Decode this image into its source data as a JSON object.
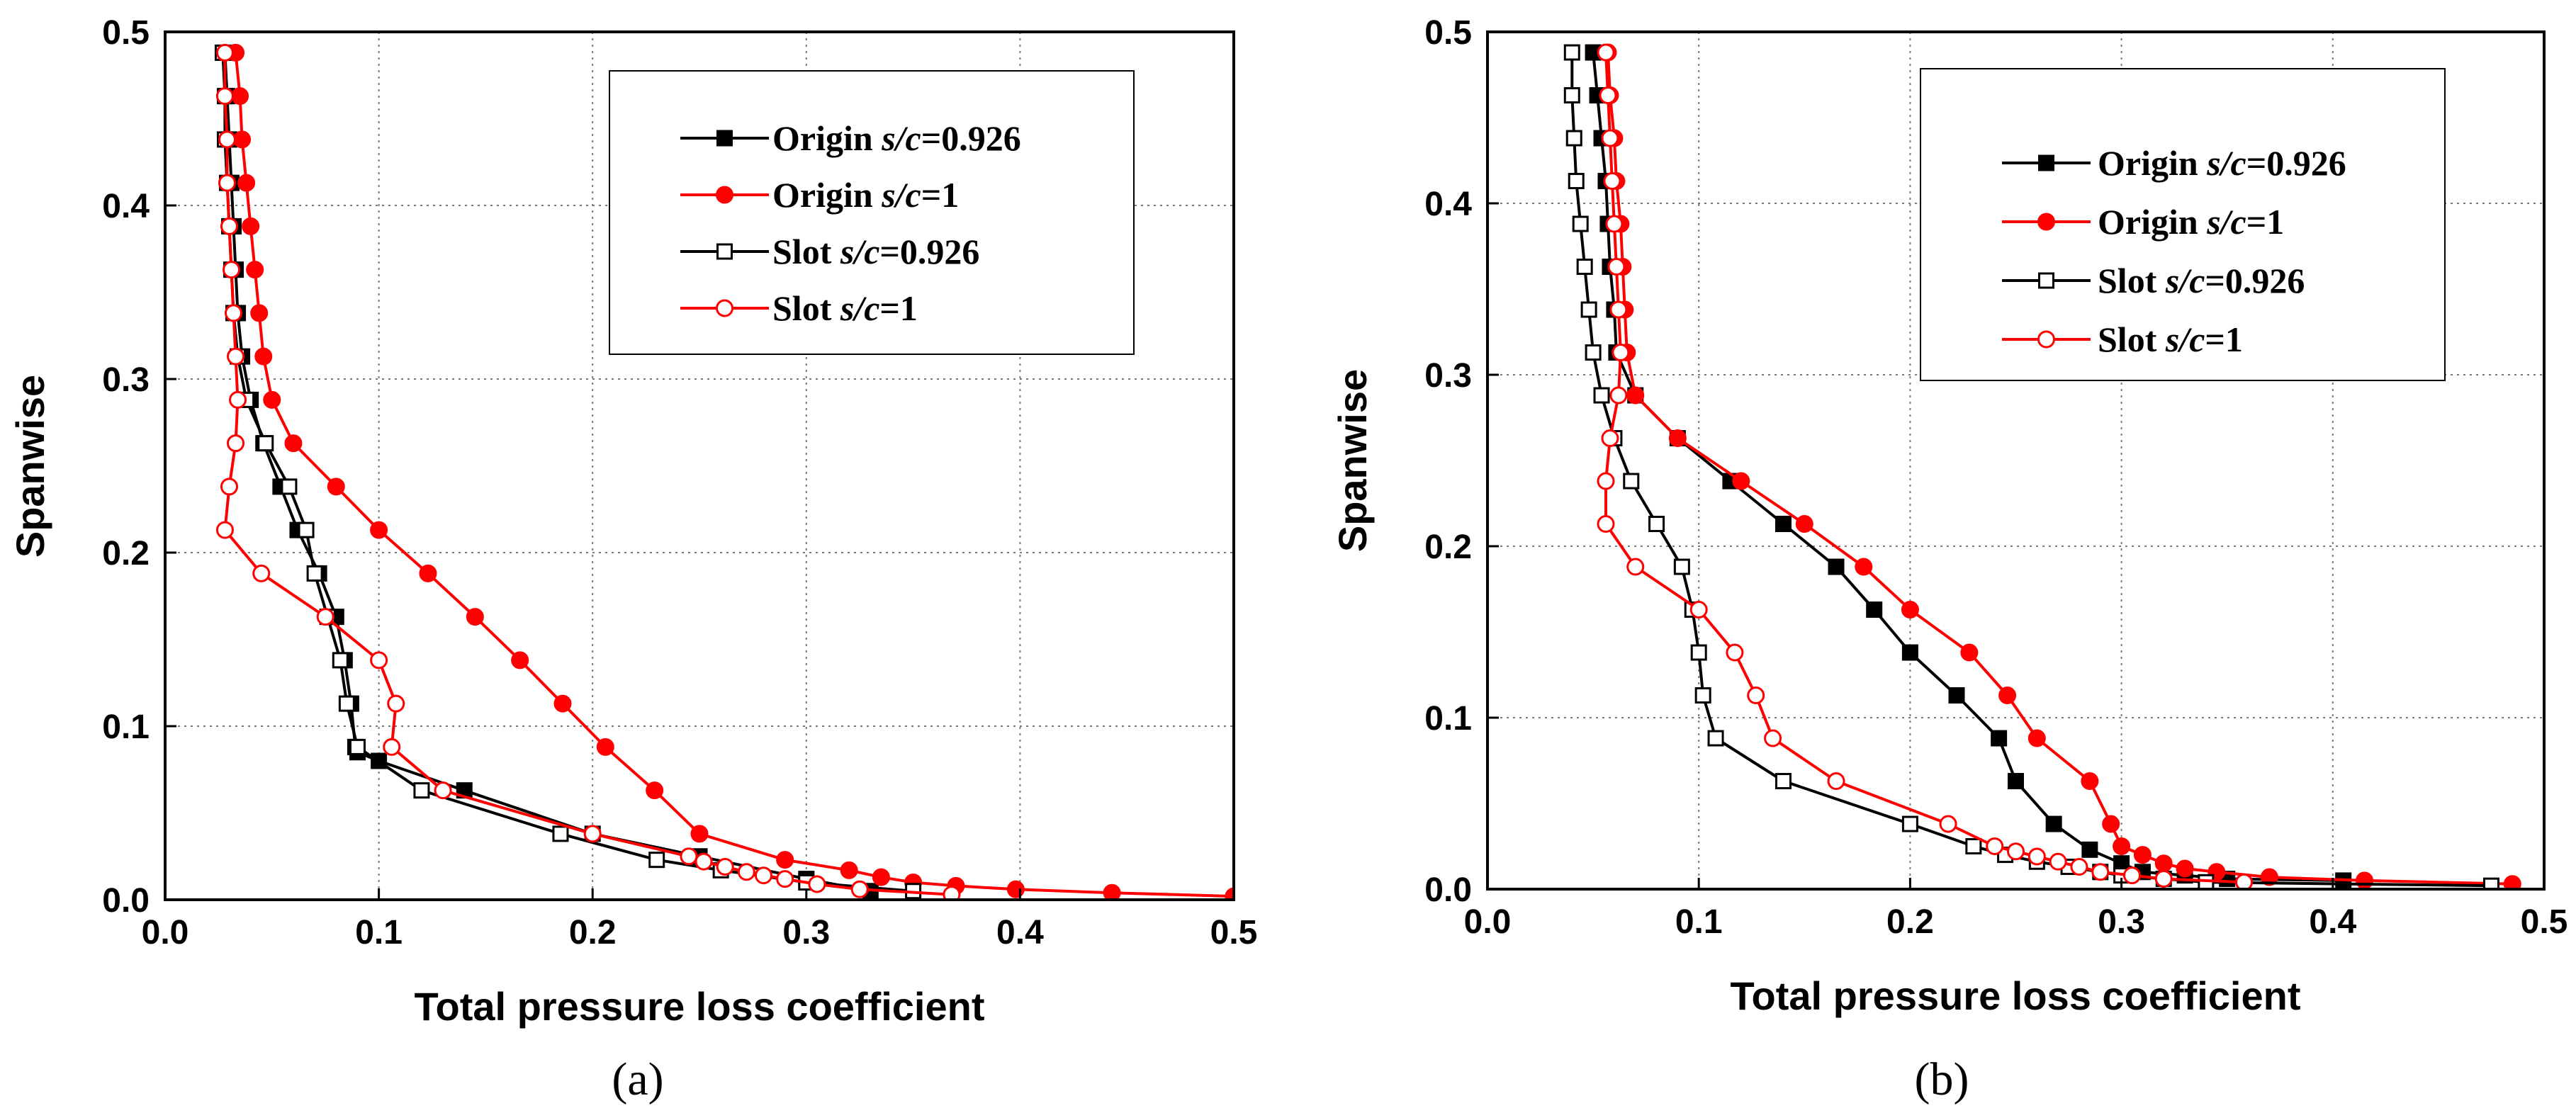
{
  "chart_data": [
    {
      "type": "line",
      "panel_label": "(a)",
      "xlabel": "Total pressure loss coefficient",
      "ylabel": "Spanwise",
      "xlim": [
        0.0,
        0.5
      ],
      "ylim": [
        0.0,
        0.5
      ],
      "xticks": [
        0.0,
        0.1,
        0.2,
        0.3,
        0.4,
        0.5
      ],
      "yticks": [
        0.0,
        0.1,
        0.2,
        0.3,
        0.4,
        0.5
      ],
      "xtick_labels": [
        "0.0",
        "0.1",
        "0.2",
        "0.3",
        "0.4",
        "0.5"
      ],
      "ytick_labels": [
        "0.0",
        "0.1",
        "0.2",
        "0.3",
        "0.4",
        "0.5"
      ],
      "grid": true,
      "legend_position": "top-right",
      "series": [
        {
          "name": "Origin s/c=0.926",
          "legend_prefix": "Origin ",
          "legend_value": "=0.926",
          "color": "#000000",
          "marker": "square",
          "filled": true,
          "x": [
            0.028,
            0.029,
            0.03,
            0.031,
            0.032,
            0.033,
            0.034,
            0.036,
            0.04,
            0.046,
            0.054,
            0.062,
            0.072,
            0.08,
            0.084,
            0.087,
            0.089,
            0.09,
            0.1,
            0.14,
            0.2,
            0.25,
            0.3,
            0.33
          ],
          "y": [
            0.488,
            0.463,
            0.438,
            0.413,
            0.388,
            0.363,
            0.338,
            0.313,
            0.288,
            0.263,
            0.238,
            0.213,
            0.188,
            0.163,
            0.138,
            0.113,
            0.088,
            0.085,
            0.08,
            0.063,
            0.038,
            0.025,
            0.012,
            0.005
          ]
        },
        {
          "name": "Origin s/c=1",
          "legend_prefix": "Origin ",
          "legend_value": "=1",
          "color": "#ff0000",
          "marker": "circle",
          "filled": true,
          "x": [
            0.033,
            0.035,
            0.036,
            0.038,
            0.04,
            0.042,
            0.044,
            0.046,
            0.05,
            0.06,
            0.08,
            0.1,
            0.123,
            0.145,
            0.166,
            0.186,
            0.206,
            0.229,
            0.25,
            0.29,
            0.32,
            0.335,
            0.35,
            0.37,
            0.398,
            0.443,
            0.5
          ],
          "y": [
            0.488,
            0.463,
            0.438,
            0.413,
            0.388,
            0.363,
            0.338,
            0.313,
            0.288,
            0.263,
            0.238,
            0.213,
            0.188,
            0.163,
            0.138,
            0.113,
            0.088,
            0.063,
            0.038,
            0.023,
            0.017,
            0.013,
            0.01,
            0.008,
            0.006,
            0.004,
            0.002
          ]
        },
        {
          "name": "Slot s/c=0.926",
          "legend_prefix": "Slot ",
          "legend_value": "=0.926",
          "color": "#000000",
          "marker": "square",
          "filled": false,
          "x": [
            0.027,
            0.028,
            0.028,
            0.029,
            0.03,
            0.031,
            0.032,
            0.034,
            0.038,
            0.047,
            0.058,
            0.066,
            0.07,
            0.076,
            0.082,
            0.085,
            0.09,
            0.12,
            0.185,
            0.23,
            0.26,
            0.3,
            0.35
          ],
          "y": [
            0.488,
            0.463,
            0.438,
            0.413,
            0.388,
            0.363,
            0.338,
            0.313,
            0.288,
            0.263,
            0.238,
            0.213,
            0.188,
            0.163,
            0.138,
            0.113,
            0.088,
            0.063,
            0.038,
            0.023,
            0.017,
            0.01,
            0.005
          ]
        },
        {
          "name": "Slot s/c=1",
          "legend_prefix": "Slot ",
          "legend_value": "=1",
          "color": "#ff0000",
          "marker": "circle",
          "filled": false,
          "x": [
            0.028,
            0.028,
            0.029,
            0.029,
            0.03,
            0.031,
            0.032,
            0.033,
            0.034,
            0.033,
            0.03,
            0.028,
            0.045,
            0.075,
            0.1,
            0.108,
            0.106,
            0.13,
            0.2,
            0.245,
            0.252,
            0.262,
            0.272,
            0.28,
            0.29,
            0.305,
            0.325,
            0.368
          ],
          "y": [
            0.488,
            0.463,
            0.438,
            0.413,
            0.388,
            0.363,
            0.338,
            0.313,
            0.288,
            0.263,
            0.238,
            0.213,
            0.188,
            0.163,
            0.138,
            0.113,
            0.088,
            0.063,
            0.038,
            0.025,
            0.022,
            0.019,
            0.016,
            0.014,
            0.012,
            0.009,
            0.006,
            0.003
          ]
        }
      ]
    },
    {
      "type": "line",
      "panel_label": "(b)",
      "xlabel": "Total pressure loss coefficient",
      "ylabel": "Spanwise",
      "xlim": [
        0.0,
        0.5
      ],
      "ylim": [
        0.0,
        0.5
      ],
      "xticks": [
        0.0,
        0.1,
        0.2,
        0.3,
        0.4,
        0.5
      ],
      "yticks": [
        0.0,
        0.1,
        0.2,
        0.3,
        0.4,
        0.5
      ],
      "xtick_labels": [
        "0.0",
        "0.1",
        "0.2",
        "0.3",
        "0.4",
        "0.5"
      ],
      "ytick_labels": [
        "0.0",
        "0.1",
        "0.2",
        "0.3",
        "0.4",
        "0.5"
      ],
      "grid": true,
      "legend_position": "top-right",
      "series": [
        {
          "name": "Origin s/c=0.926",
          "legend_prefix": "Origin ",
          "legend_value": "=0.926",
          "color": "#000000",
          "marker": "square",
          "filled": true,
          "x": [
            0.05,
            0.052,
            0.054,
            0.056,
            0.057,
            0.058,
            0.06,
            0.061,
            0.07,
            0.09,
            0.115,
            0.14,
            0.165,
            0.183,
            0.2,
            0.222,
            0.242,
            0.25,
            0.268,
            0.285,
            0.3,
            0.31,
            0.33,
            0.35,
            0.405
          ],
          "y": [
            0.488,
            0.463,
            0.438,
            0.413,
            0.388,
            0.363,
            0.338,
            0.313,
            0.288,
            0.263,
            0.238,
            0.213,
            0.188,
            0.163,
            0.138,
            0.113,
            0.088,
            0.063,
            0.038,
            0.023,
            0.015,
            0.01,
            0.008,
            0.006,
            0.005
          ]
        },
        {
          "name": "Origin s/c=1",
          "legend_prefix": "Origin ",
          "legend_value": "=1",
          "color": "#ff0000",
          "marker": "circle",
          "filled": true,
          "x": [
            0.057,
            0.058,
            0.06,
            0.061,
            0.063,
            0.064,
            0.065,
            0.066,
            0.07,
            0.09,
            0.12,
            0.15,
            0.178,
            0.2,
            0.228,
            0.246,
            0.26,
            0.285,
            0.295,
            0.3,
            0.31,
            0.32,
            0.33,
            0.345,
            0.37,
            0.415,
            0.485
          ],
          "y": [
            0.488,
            0.463,
            0.438,
            0.413,
            0.388,
            0.363,
            0.338,
            0.313,
            0.288,
            0.263,
            0.238,
            0.213,
            0.188,
            0.163,
            0.138,
            0.113,
            0.088,
            0.063,
            0.038,
            0.025,
            0.02,
            0.015,
            0.012,
            0.01,
            0.007,
            0.005,
            0.003
          ]
        },
        {
          "name": "Slot s/c=0.926",
          "legend_prefix": "Slot ",
          "legend_value": "=0.926",
          "color": "#000000",
          "marker": "square",
          "filled": false,
          "x": [
            0.04,
            0.04,
            0.041,
            0.042,
            0.044,
            0.046,
            0.048,
            0.05,
            0.054,
            0.06,
            0.068,
            0.08,
            0.092,
            0.097,
            0.1,
            0.102,
            0.108,
            0.14,
            0.2,
            0.23,
            0.245,
            0.26,
            0.275,
            0.29,
            0.3,
            0.32,
            0.34,
            0.475
          ],
          "y": [
            0.488,
            0.463,
            0.438,
            0.413,
            0.388,
            0.363,
            0.338,
            0.313,
            0.288,
            0.263,
            0.238,
            0.213,
            0.188,
            0.163,
            0.138,
            0.113,
            0.088,
            0.063,
            0.038,
            0.025,
            0.02,
            0.016,
            0.013,
            0.01,
            0.008,
            0.006,
            0.004,
            0.002
          ]
        },
        {
          "name": "Slot s/c=1",
          "legend_prefix": "Slot ",
          "legend_value": "=1",
          "color": "#ff0000",
          "marker": "circle",
          "filled": false,
          "x": [
            0.056,
            0.057,
            0.058,
            0.059,
            0.06,
            0.061,
            0.062,
            0.063,
            0.062,
            0.058,
            0.056,
            0.056,
            0.07,
            0.1,
            0.117,
            0.127,
            0.135,
            0.165,
            0.218,
            0.24,
            0.25,
            0.26,
            0.27,
            0.28,
            0.29,
            0.305,
            0.32,
            0.358
          ],
          "y": [
            0.488,
            0.463,
            0.438,
            0.413,
            0.388,
            0.363,
            0.338,
            0.313,
            0.288,
            0.263,
            0.238,
            0.213,
            0.188,
            0.163,
            0.138,
            0.113,
            0.088,
            0.063,
            0.038,
            0.025,
            0.022,
            0.019,
            0.016,
            0.013,
            0.01,
            0.008,
            0.006,
            0.004
          ]
        }
      ]
    }
  ]
}
